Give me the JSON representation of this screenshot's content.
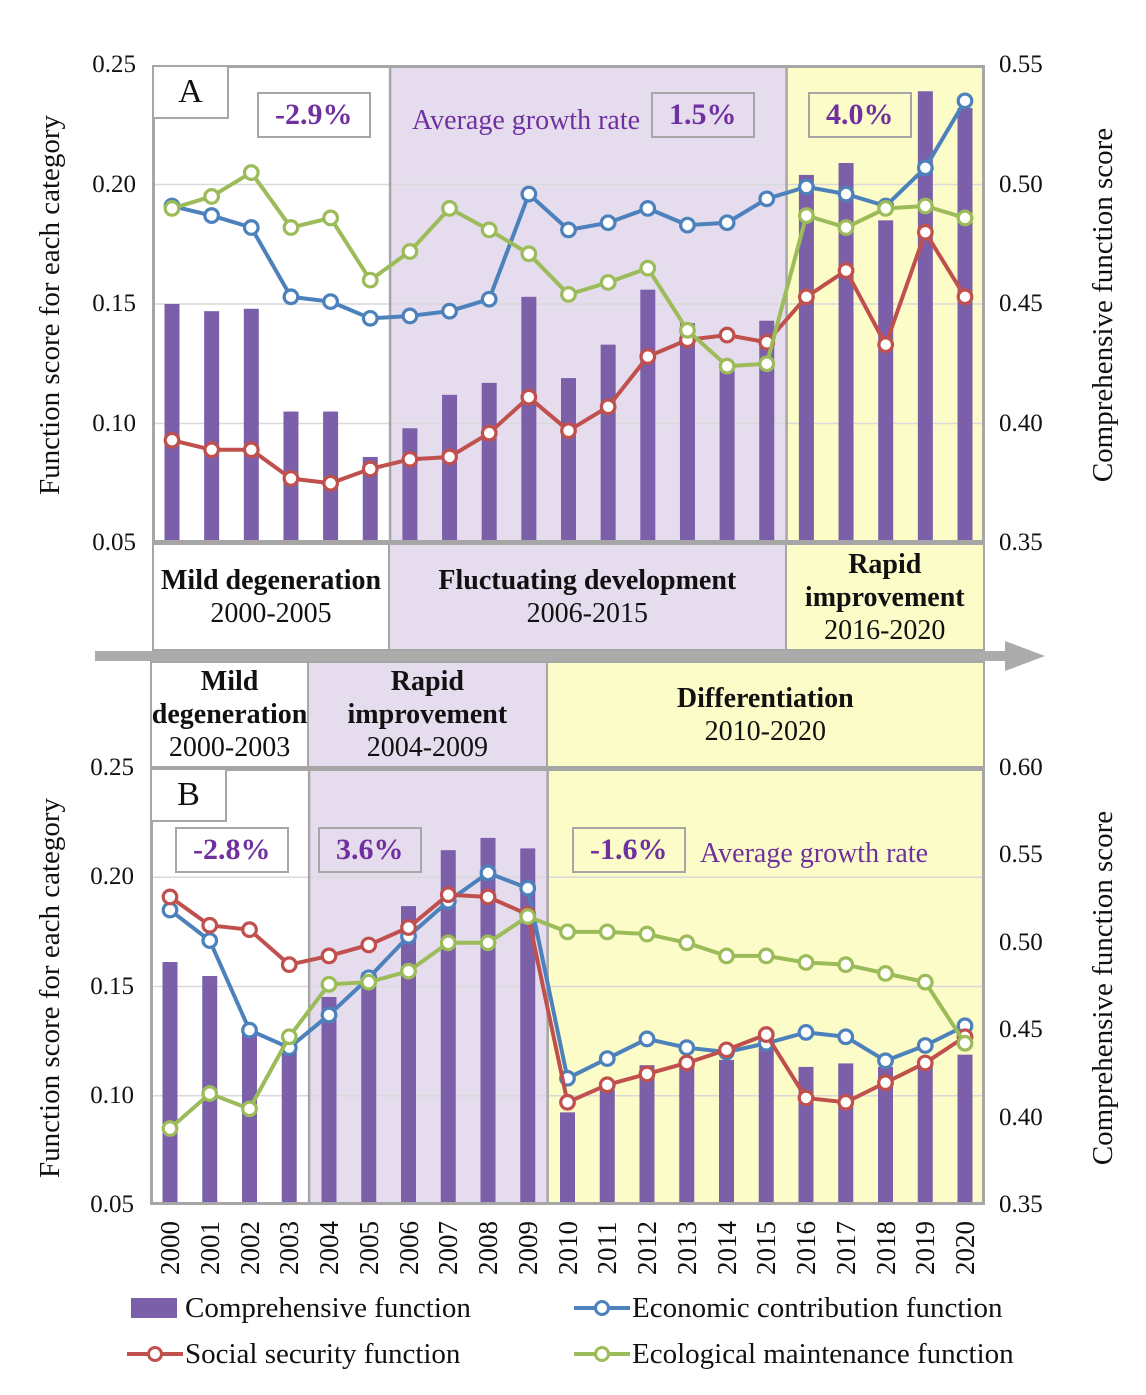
{
  "years": [
    "2000",
    "2001",
    "2002",
    "2003",
    "2004",
    "2005",
    "2006",
    "2007",
    "2008",
    "2009",
    "2010",
    "2011",
    "2012",
    "2013",
    "2014",
    "2015",
    "2016",
    "2017",
    "2018",
    "2019",
    "2020"
  ],
  "annotation_color": "#7030A0",
  "legend": [
    {
      "label": "Comprehensive function",
      "type": "bar",
      "color": "#7B5FA9"
    },
    {
      "label": "Economic contribution function",
      "type": "line",
      "color": "#4C81BC"
    },
    {
      "label": "Social security function",
      "type": "line",
      "color": "#C0504D"
    },
    {
      "label": "Ecological maintenance function",
      "type": "line",
      "color": "#9CBB59"
    }
  ],
  "chart_data": [
    {
      "id": "A",
      "type": "bar",
      "left_axis": {
        "label": "Function score for each category",
        "min": 0.05,
        "max": 0.25,
        "ticks": [
          "0.25",
          "0.20",
          "0.15",
          "0.10",
          "0.05"
        ]
      },
      "right_axis": {
        "label": "Comprehensive function score",
        "min": 0.35,
        "max": 0.55,
        "ticks": [
          "0.55",
          "0.50",
          "0.45",
          "0.40",
          "0.35"
        ]
      },
      "avg_growth_label": "Average growth rate",
      "phases": [
        {
          "name": "Mild degeneration",
          "period": "2000-2005",
          "start_year": "2000",
          "end_year": "2005",
          "bg": "#FFFFFF",
          "growth_rate": "-2.9%"
        },
        {
          "name": "Fluctuating development",
          "period": "2006-2015",
          "start_year": "2006",
          "end_year": "2015",
          "bg": "#E5DCEE",
          "growth_rate": "1.5%"
        },
        {
          "name": "Rapid improvement",
          "period": "2016-2020",
          "start_year": "2016",
          "end_year": "2020",
          "bg": "#FCFCC8",
          "growth_rate": "4.0%"
        }
      ],
      "series": [
        {
          "name": "Comprehensive function",
          "type": "bar",
          "axis": "right",
          "color": "#7B5FA9",
          "values": [
            0.45,
            0.447,
            0.448,
            0.405,
            0.405,
            0.386,
            0.398,
            0.412,
            0.417,
            0.453,
            0.419,
            0.433,
            0.456,
            0.442,
            0.423,
            0.443,
            0.504,
            0.509,
            0.485,
            0.539,
            0.532
          ]
        },
        {
          "name": "Economic contribution function",
          "type": "line",
          "axis": "left",
          "color": "#4C81BC",
          "values": [
            0.191,
            0.187,
            0.182,
            0.153,
            0.151,
            0.144,
            0.145,
            0.147,
            0.152,
            0.196,
            0.181,
            0.184,
            0.19,
            0.183,
            0.184,
            0.194,
            0.199,
            0.196,
            0.191,
            0.207,
            0.235
          ]
        },
        {
          "name": "Social security function",
          "type": "line",
          "axis": "left",
          "color": "#C0504D",
          "values": [
            0.093,
            0.089,
            0.089,
            0.077,
            0.075,
            0.081,
            0.085,
            0.086,
            0.096,
            0.111,
            0.097,
            0.107,
            0.128,
            0.135,
            0.137,
            0.134,
            0.153,
            0.164,
            0.133,
            0.18,
            0.153
          ]
        },
        {
          "name": "Ecological maintenance function",
          "type": "line",
          "axis": "left",
          "color": "#9CBB59",
          "values": [
            0.19,
            0.195,
            0.205,
            0.182,
            0.186,
            0.16,
            0.172,
            0.19,
            0.181,
            0.171,
            0.154,
            0.159,
            0.165,
            0.139,
            0.124,
            0.125,
            0.187,
            0.182,
            0.19,
            0.191,
            0.186
          ]
        }
      ]
    },
    {
      "id": "B",
      "type": "bar",
      "left_axis": {
        "label": "Function score for each category",
        "min": 0.05,
        "max": 0.25,
        "ticks": [
          "0.25",
          "0.20",
          "0.15",
          "0.10",
          "0.05"
        ]
      },
      "right_axis": {
        "label": "Comprehensive function score",
        "min": 0.35,
        "max": 0.6,
        "ticks": [
          "0.60",
          "0.55",
          "0.50",
          "0.45",
          "0.40",
          "0.35"
        ]
      },
      "avg_growth_label": "Average growth rate",
      "phases": [
        {
          "name": "Mild degeneration",
          "period": "2000-2003",
          "start_year": "2000",
          "end_year": "2003",
          "bg": "#FFFFFF",
          "growth_rate": "-2.8%"
        },
        {
          "name": "Rapid improvement",
          "period": "2004-2009",
          "start_year": "2004",
          "end_year": "2009",
          "bg": "#E5DCEE",
          "growth_rate": "3.6%"
        },
        {
          "name": "Differentiation",
          "period": "2010-2020",
          "start_year": "2010",
          "end_year": "2020",
          "bg": "#FCFCC8",
          "growth_rate": "-1.6%"
        }
      ],
      "series": [
        {
          "name": "Comprehensive function",
          "type": "bar",
          "axis": "right",
          "color": "#7B5FA9",
          "values": [
            0.489,
            0.481,
            0.45,
            0.439,
            0.469,
            0.483,
            0.521,
            0.553,
            0.56,
            0.554,
            0.403,
            0.416,
            0.43,
            0.431,
            0.433,
            0.44,
            0.429,
            0.431,
            0.429,
            0.431,
            0.436
          ]
        },
        {
          "name": "Economic contribution function",
          "type": "line",
          "axis": "left",
          "color": "#4C81BC",
          "values": [
            0.185,
            0.171,
            0.13,
            0.122,
            0.137,
            0.154,
            0.173,
            0.189,
            0.202,
            0.195,
            0.108,
            0.117,
            0.126,
            0.122,
            0.12,
            0.124,
            0.129,
            0.127,
            0.116,
            0.123,
            0.132
          ]
        },
        {
          "name": "Social security function",
          "type": "line",
          "axis": "left",
          "color": "#C0504D",
          "values": [
            0.191,
            0.178,
            0.176,
            0.16,
            0.164,
            0.169,
            0.177,
            0.192,
            0.191,
            0.183,
            0.097,
            0.105,
            0.11,
            0.115,
            0.121,
            0.128,
            0.099,
            0.097,
            0.106,
            0.115,
            0.127
          ]
        },
        {
          "name": "Ecological maintenance function",
          "type": "line",
          "axis": "left",
          "color": "#9CBB59",
          "values": [
            0.085,
            0.101,
            0.094,
            0.127,
            0.151,
            0.152,
            0.157,
            0.17,
            0.17,
            0.182,
            0.175,
            0.175,
            0.174,
            0.17,
            0.164,
            0.164,
            0.161,
            0.16,
            0.156,
            0.152,
            0.124
          ]
        }
      ]
    }
  ]
}
